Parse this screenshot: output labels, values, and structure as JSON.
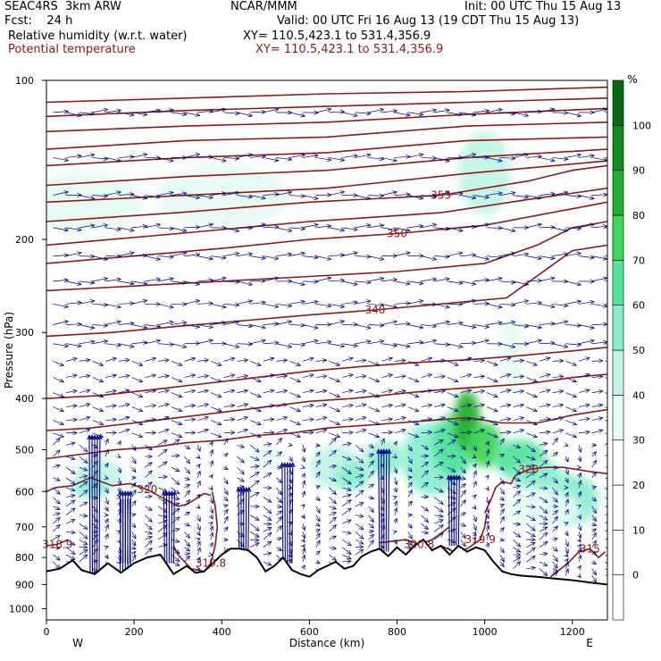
{
  "header": {
    "model": "SEAC4RS  3km ARW",
    "org": "NCAR/MMM",
    "init": "Init: 00 UTC Thu 15 Aug 13",
    "fcst": "Fcst:    24 h",
    "valid": "Valid: 00 UTC Fri 16 Aug 13 (19 CDT Thu 15 Aug 13)",
    "field1": "Relative humidity (w.r.t. water)",
    "field1_xy": "XY= 110.5,423.1 to 531.4,356.9",
    "field2": "Potential temperature",
    "field2_xy": "XY= 110.5,423.1 to 531.4,356.9"
  },
  "colors": {
    "theta": "#8b1a1a",
    "terrain": "#000000",
    "wind": "#000080",
    "rh_scale": [
      "#ffffff",
      "#ffffff",
      "#ffffff",
      "#ffffff",
      "#e6fbf3",
      "#c1f5e6",
      "#8deecf",
      "#55e39b",
      "#3fd45a",
      "#21b02e",
      "#118a1e",
      "#066b12"
    ]
  },
  "chart_data": {
    "type": "heatmap",
    "xlabel": "Distance (km)",
    "ylabel": "Pressure (hPa)",
    "xlim": [
      0,
      1280
    ],
    "ylim": [
      1050,
      100
    ],
    "x_ticks": [
      0,
      200,
      400,
      600,
      800,
      1000,
      1200
    ],
    "y_ticks": [
      100,
      200,
      300,
      400,
      500,
      600,
      700,
      800,
      900,
      1000
    ],
    "x_end_labels": [
      "W",
      "E"
    ],
    "colorbar": {
      "unit": "%",
      "levels": [
        -10,
        0,
        10,
        20,
        30,
        40,
        50,
        60,
        70,
        80,
        90,
        100,
        110
      ],
      "tick_labels": [
        0,
        10,
        20,
        30,
        40,
        50,
        60,
        70,
        80,
        90,
        100
      ]
    },
    "terrain_surface": [
      [
        0,
        850
      ],
      [
        30,
        840
      ],
      [
        60,
        810
      ],
      [
        80,
        845
      ],
      [
        110,
        860
      ],
      [
        140,
        820
      ],
      [
        170,
        855
      ],
      [
        200,
        820
      ],
      [
        230,
        800
      ],
      [
        260,
        790
      ],
      [
        290,
        860
      ],
      [
        320,
        830
      ],
      [
        340,
        855
      ],
      [
        360,
        850
      ],
      [
        380,
        820
      ],
      [
        400,
        790
      ],
      [
        420,
        770
      ],
      [
        440,
        770
      ],
      [
        460,
        775
      ],
      [
        480,
        800
      ],
      [
        500,
        850
      ],
      [
        520,
        830
      ],
      [
        540,
        800
      ],
      [
        560,
        845
      ],
      [
        580,
        860
      ],
      [
        600,
        870
      ],
      [
        620,
        845
      ],
      [
        640,
        830
      ],
      [
        660,
        815
      ],
      [
        680,
        840
      ],
      [
        700,
        830
      ],
      [
        720,
        795
      ],
      [
        740,
        780
      ],
      [
        760,
        770
      ],
      [
        780,
        795
      ],
      [
        800,
        765
      ],
      [
        820,
        790
      ],
      [
        840,
        760
      ],
      [
        860,
        740
      ],
      [
        880,
        775
      ],
      [
        900,
        760
      ],
      [
        920,
        790
      ],
      [
        940,
        760
      ],
      [
        960,
        780
      ],
      [
        980,
        765
      ],
      [
        1000,
        775
      ],
      [
        1020,
        815
      ],
      [
        1040,
        850
      ],
      [
        1060,
        860
      ],
      [
        1080,
        865
      ],
      [
        1100,
        868
      ],
      [
        1120,
        870
      ],
      [
        1150,
        875
      ],
      [
        1180,
        880
      ],
      [
        1210,
        885
      ],
      [
        1240,
        892
      ],
      [
        1280,
        900
      ]
    ],
    "theta_contours": [
      {
        "label": "315",
        "points": [
          [
            1150,
            870
          ],
          [
            1190,
            820
          ],
          [
            1215,
            780
          ],
          [
            1240,
            770
          ],
          [
            1260,
            800
          ],
          [
            1275,
            780
          ]
        ]
      },
      {
        "label": "318.9",
        "points": [
          [
            0,
            760
          ],
          [
            25,
            755
          ],
          [
            50,
            740
          ]
        ]
      },
      {
        "label": "319.8",
        "points": [
          [
            290,
            760
          ],
          [
            300,
            790
          ],
          [
            330,
            840
          ],
          [
            360,
            850
          ],
          [
            375,
            820
          ],
          [
            385,
            760
          ],
          [
            390,
            700
          ],
          [
            385,
            640
          ],
          [
            378,
            600
          ]
        ]
      },
      {
        "label": "320.8",
        "points": [
          [
            760,
            750
          ],
          [
            790,
            745
          ],
          [
            820,
            740
          ],
          [
            850,
            755
          ],
          [
            880,
            740
          ],
          [
            900,
            720
          ],
          [
            920,
            700
          ]
        ]
      },
      {
        "label": "319.9",
        "points": [
          [
            900,
            760
          ],
          [
            930,
            780
          ],
          [
            960,
            770
          ],
          [
            990,
            740
          ],
          [
            1000,
            700
          ],
          [
            1005,
            660
          ]
        ]
      },
      {
        "label": "320",
        "points": [
          [
            0,
            600
          ],
          [
            20,
            590
          ],
          [
            60,
            585
          ],
          [
            100,
            565
          ],
          [
            150,
            585
          ],
          [
            190,
            580
          ],
          [
            230,
            595
          ],
          [
            270,
            620
          ],
          [
            300,
            640
          ],
          [
            320,
            635
          ],
          [
            340,
            620
          ],
          [
            360,
            605
          ],
          [
            375,
            610
          ]
        ]
      },
      {
        "label": "320",
        "points": [
          [
            1000,
            660
          ],
          [
            1015,
            620
          ],
          [
            1025,
            590
          ],
          [
            1040,
            575
          ],
          [
            1060,
            580
          ],
          [
            1070,
            560
          ],
          [
            1100,
            545
          ],
          [
            1140,
            540
          ],
          [
            1180,
            540
          ],
          [
            1210,
            545
          ],
          [
            1240,
            550
          ],
          [
            1280,
            555
          ]
        ]
      },
      {
        "label": "",
        "points": [
          [
            0,
            520
          ],
          [
            80,
            510
          ],
          [
            160,
            500
          ],
          [
            240,
            495
          ],
          [
            320,
            485
          ],
          [
            400,
            480
          ],
          [
            480,
            470
          ],
          [
            560,
            465
          ],
          [
            640,
            455
          ],
          [
            720,
            450
          ],
          [
            800,
            445
          ],
          [
            880,
            440
          ],
          [
            960,
            435
          ],
          [
            1040,
            445
          ],
          [
            1120,
            445
          ],
          [
            1200,
            430
          ],
          [
            1280,
            420
          ]
        ]
      },
      {
        "label": "",
        "points": [
          [
            0,
            460
          ],
          [
            100,
            455
          ],
          [
            200,
            445
          ],
          [
            300,
            435
          ],
          [
            400,
            425
          ],
          [
            500,
            415
          ],
          [
            600,
            405
          ],
          [
            700,
            400
          ],
          [
            800,
            392
          ],
          [
            900,
            385
          ],
          [
            1000,
            380
          ],
          [
            1100,
            375
          ],
          [
            1200,
            365
          ],
          [
            1280,
            360
          ]
        ]
      },
      {
        "label": "",
        "points": [
          [
            0,
            400
          ],
          [
            120,
            395
          ],
          [
            240,
            385
          ],
          [
            360,
            375
          ],
          [
            480,
            365
          ],
          [
            600,
            355
          ],
          [
            720,
            348
          ],
          [
            840,
            342
          ],
          [
            960,
            338
          ],
          [
            1080,
            332
          ],
          [
            1200,
            325
          ],
          [
            1280,
            320
          ]
        ]
      },
      {
        "label": "340",
        "points": [
          [
            0,
            305
          ],
          [
            150,
            300
          ],
          [
            300,
            292
          ],
          [
            450,
            285
          ],
          [
            600,
            278
          ],
          [
            750,
            272
          ],
          [
            900,
            265
          ],
          [
            1050,
            258
          ],
          [
            1150,
            225
          ],
          [
            1200,
            210
          ],
          [
            1280,
            205
          ]
        ]
      },
      {
        "label": "",
        "points": [
          [
            0,
            250
          ],
          [
            200,
            245
          ],
          [
            400,
            240
          ],
          [
            600,
            235
          ],
          [
            800,
            230
          ],
          [
            1000,
            222
          ],
          [
            1120,
            205
          ],
          [
            1200,
            190
          ],
          [
            1280,
            185
          ]
        ]
      },
      {
        "label": "350",
        "points": [
          [
            0,
            222
          ],
          [
            200,
            215
          ],
          [
            400,
            208
          ],
          [
            600,
            200
          ],
          [
            800,
            195
          ],
          [
            1000,
            188
          ],
          [
            1200,
            175
          ],
          [
            1280,
            170
          ]
        ]
      },
      {
        "label": "",
        "points": [
          [
            0,
            205
          ],
          [
            300,
            195
          ],
          [
            600,
            185
          ],
          [
            900,
            178
          ],
          [
            1100,
            168
          ],
          [
            1280,
            160
          ]
        ]
      },
      {
        "label": "355",
        "points": [
          [
            0,
            185
          ],
          [
            300,
            178
          ],
          [
            600,
            170
          ],
          [
            900,
            165
          ],
          [
            1100,
            155
          ],
          [
            1200,
            148
          ],
          [
            1280,
            145
          ]
        ]
      },
      {
        "label": "",
        "points": [
          [
            0,
            170
          ],
          [
            320,
            165
          ],
          [
            640,
            160
          ],
          [
            960,
            150
          ],
          [
            1280,
            142
          ]
        ]
      },
      {
        "label": "",
        "points": [
          [
            0,
            158
          ],
          [
            320,
            152
          ],
          [
            640,
            148
          ],
          [
            960,
            140
          ],
          [
            1280,
            135
          ]
        ]
      },
      {
        "label": "",
        "points": [
          [
            0,
            145
          ],
          [
            320,
            140
          ],
          [
            640,
            137
          ],
          [
            960,
            130
          ],
          [
            1280,
            128
          ]
        ]
      },
      {
        "label": "",
        "points": [
          [
            0,
            135
          ],
          [
            320,
            130
          ],
          [
            640,
            128
          ],
          [
            960,
            122
          ],
          [
            1280,
            120
          ]
        ]
      },
      {
        "label": "",
        "points": [
          [
            0,
            125
          ],
          [
            320,
            122
          ],
          [
            640,
            120
          ],
          [
            960,
            116
          ],
          [
            1280,
            113
          ]
        ]
      },
      {
        "label": "",
        "points": [
          [
            0,
            117
          ],
          [
            320,
            114
          ],
          [
            640,
            112
          ],
          [
            960,
            110
          ],
          [
            1280,
            108
          ]
        ]
      },
      {
        "label": "",
        "points": [
          [
            0,
            110
          ],
          [
            320,
            108
          ],
          [
            640,
            106
          ],
          [
            960,
            105
          ],
          [
            1280,
            103
          ]
        ]
      }
    ],
    "rh_blobs": [
      {
        "x": 120,
        "p": 560,
        "rx": 55,
        "rp": 45,
        "rh": 45
      },
      {
        "x": 100,
        "p": 590,
        "rx": 40,
        "rp": 25,
        "rh": 55
      },
      {
        "x": 230,
        "p": 580,
        "rx": 45,
        "rp": 35,
        "rh": 35
      },
      {
        "x": 500,
        "p": 520,
        "rx": 40,
        "rp": 30,
        "rh": 35
      },
      {
        "x": 660,
        "p": 540,
        "rx": 60,
        "rp": 55,
        "rh": 45
      },
      {
        "x": 700,
        "p": 560,
        "rx": 40,
        "rp": 35,
        "rh": 55
      },
      {
        "x": 770,
        "p": 520,
        "rx": 45,
        "rp": 40,
        "rh": 55
      },
      {
        "x": 880,
        "p": 520,
        "rx": 70,
        "rp": 90,
        "rh": 50
      },
      {
        "x": 930,
        "p": 490,
        "rx": 50,
        "rp": 70,
        "rh": 65
      },
      {
        "x": 960,
        "p": 440,
        "rx": 30,
        "rp": 60,
        "rh": 80
      },
      {
        "x": 1000,
        "p": 490,
        "rx": 40,
        "rp": 50,
        "rh": 70
      },
      {
        "x": 1080,
        "p": 520,
        "rx": 60,
        "rp": 45,
        "rh": 65
      },
      {
        "x": 1120,
        "p": 560,
        "rx": 60,
        "rp": 40,
        "rh": 55
      },
      {
        "x": 1200,
        "p": 620,
        "rx": 60,
        "rp": 70,
        "rh": 50
      },
      {
        "x": 1130,
        "p": 650,
        "rx": 90,
        "rp": 60,
        "rh": 35
      },
      {
        "x": 1060,
        "p": 330,
        "rx": 25,
        "rp": 70,
        "rh": 35
      },
      {
        "x": 80,
        "p": 170,
        "rx": 140,
        "rp": 25,
        "rh": 35
      },
      {
        "x": 400,
        "p": 165,
        "rx": 150,
        "rp": 25,
        "rh": 30
      },
      {
        "x": 1000,
        "p": 150,
        "rx": 60,
        "rp": 30,
        "rh": 40
      }
    ],
    "updrafts": [
      {
        "x": 110,
        "p_bottom": 860,
        "p_top": 470
      },
      {
        "x": 180,
        "p_bottom": 820,
        "p_top": 600
      },
      {
        "x": 280,
        "p_bottom": 820,
        "p_top": 600
      },
      {
        "x": 450,
        "p_bottom": 780,
        "p_top": 590
      },
      {
        "x": 550,
        "p_bottom": 820,
        "p_top": 530
      },
      {
        "x": 770,
        "p_bottom": 780,
        "p_top": 500
      },
      {
        "x": 930,
        "p_bottom": 760,
        "p_top": 560
      }
    ],
    "downdrafts": [
      {
        "x": 180,
        "p_top": 620,
        "p_bottom": 920
      }
    ]
  }
}
